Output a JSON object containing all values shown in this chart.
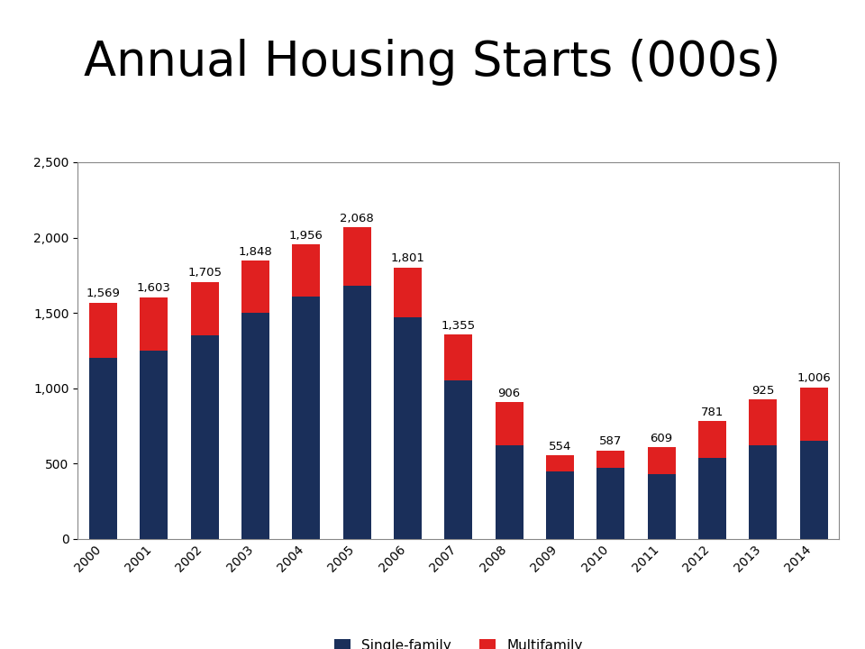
{
  "years": [
    "2000",
    "2001",
    "2002",
    "2003",
    "2004",
    "2005",
    "2006",
    "2007",
    "2008",
    "2009",
    "2010",
    "2011",
    "2012",
    "2013",
    "2014"
  ],
  "totals": [
    1569,
    1603,
    1705,
    1848,
    1956,
    2068,
    1801,
    1355,
    906,
    554,
    587,
    609,
    781,
    925,
    1006
  ],
  "single_family": [
    1200,
    1250,
    1350,
    1500,
    1610,
    1680,
    1470,
    1050,
    620,
    445,
    470,
    430,
    535,
    620,
    650
  ],
  "title": "Annual Housing Starts (000s)",
  "color_single": "#1a2f5a",
  "color_multi": "#e02020",
  "legend_single": "Single-family",
  "legend_multi": "Multifamily",
  "ylim": [
    0,
    2500
  ],
  "yticks": [
    0,
    500,
    1000,
    1500,
    2000,
    2500
  ],
  "title_fontsize": 38,
  "label_fontsize": 9.5,
  "tick_fontsize": 10,
  "legend_fontsize": 11,
  "background_color": "#ffffff",
  "chart_bg": "#ffffff",
  "border_color": "#888888"
}
